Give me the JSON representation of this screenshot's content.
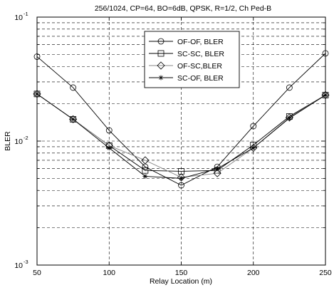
{
  "chart_data": {
    "type": "line",
    "title": "256/1024, CP=64, BO=6dB, QPSK, R=1/2, Ch Ped-B",
    "xlabel": "Relay Location (m)",
    "ylabel": "BLER",
    "xlim": [
      50,
      250
    ],
    "ylim": [
      0.001,
      0.1
    ],
    "yscale": "log",
    "grid": "dashed, on at major and minor log ticks",
    "legend_position": "top-center",
    "x_ticks": [
      "50",
      "100",
      "150",
      "200",
      "250"
    ],
    "y_ticks": [
      {
        "base": "10",
        "exp": "-3"
      },
      {
        "base": "10",
        "exp": "-2"
      },
      {
        "base": "10",
        "exp": "-1"
      }
    ],
    "x": [
      50,
      75,
      100,
      125,
      150,
      175,
      200,
      225,
      250
    ],
    "series": [
      {
        "name": "OF-OF, BLER",
        "marker": "circle",
        "values": [
          0.048,
          0.027,
          0.0122,
          0.0062,
          0.0044,
          0.0062,
          0.0132,
          0.027,
          0.051
        ]
      },
      {
        "name": "SC-SC, BLER",
        "marker": "square",
        "values": [
          0.024,
          0.015,
          0.0092,
          0.0058,
          0.0057,
          0.0058,
          0.0093,
          0.0158,
          0.0235
        ]
      },
      {
        "name": "OF-SC,BLER",
        "marker": "diamond",
        "values": [
          0.024,
          0.015,
          0.0092,
          0.007,
          0.0051,
          0.0055,
          0.0088,
          0.0155,
          0.0235
        ]
      },
      {
        "name": "SC-OF, BLER",
        "marker": "asterisk",
        "values": [
          0.024,
          0.015,
          0.0088,
          0.0052,
          0.005,
          0.006,
          0.0088,
          0.0153,
          0.0235
        ]
      }
    ]
  }
}
